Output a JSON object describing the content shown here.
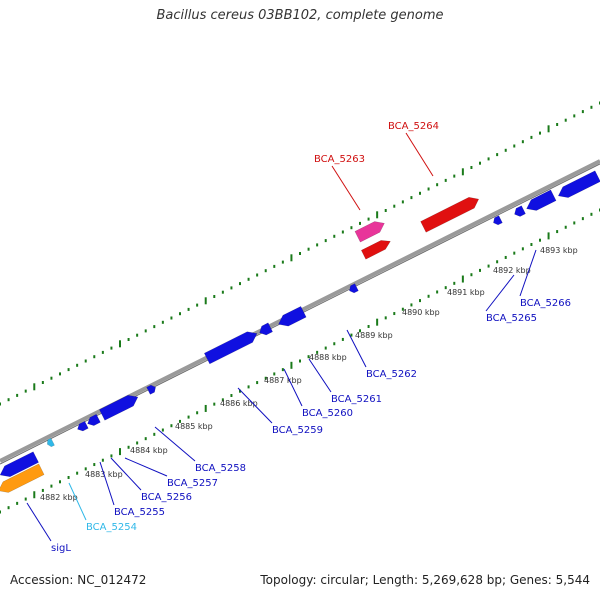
{
  "title": "Bacillus cereus 03BB102, complete genome",
  "footer": {
    "accession": "Accession: NC_012472",
    "summary": "Topology: circular; Length: 5,269,628 bp; Genes: 5,544"
  },
  "colors": {
    "backbone": "#8a8a8a",
    "tick": "#1a7a1a",
    "cds": "#1010e0",
    "cds_label": "#1010c0",
    "rna": "#e01010",
    "rna_label": "#d01010",
    "highlight": "#e8359a",
    "orange": "#ff9a10",
    "cyan": "#30b8e8"
  },
  "kbp_labels": [
    "4882 kbp",
    "4883 kbp",
    "4884 kbp",
    "4885 kbp",
    "4886 kbp",
    "4887 kbp",
    "4888 kbp",
    "4889 kbp",
    "4890 kbp",
    "4891 kbp",
    "4892 kbp",
    "4893 kbp"
  ],
  "genes": [
    {
      "name": "sigL",
      "color": "cds_label"
    },
    {
      "name": "BCA_5254",
      "color": "cyan"
    },
    {
      "name": "BCA_5255",
      "color": "cds_label"
    },
    {
      "name": "BCA_5256",
      "color": "cds_label"
    },
    {
      "name": "BCA_5257",
      "color": "cds_label"
    },
    {
      "name": "BCA_5258",
      "color": "cds_label"
    },
    {
      "name": "BCA_5259",
      "color": "cds_label"
    },
    {
      "name": "BCA_5260",
      "color": "cds_label"
    },
    {
      "name": "BCA_5261",
      "color": "cds_label"
    },
    {
      "name": "BCA_5262",
      "color": "cds_label"
    },
    {
      "name": "BCA_5263",
      "color": "rna_label"
    },
    {
      "name": "BCA_5264",
      "color": "rna_label"
    },
    {
      "name": "BCA_5265",
      "color": "cds_label"
    },
    {
      "name": "BCA_5266",
      "color": "cds_label"
    }
  ]
}
